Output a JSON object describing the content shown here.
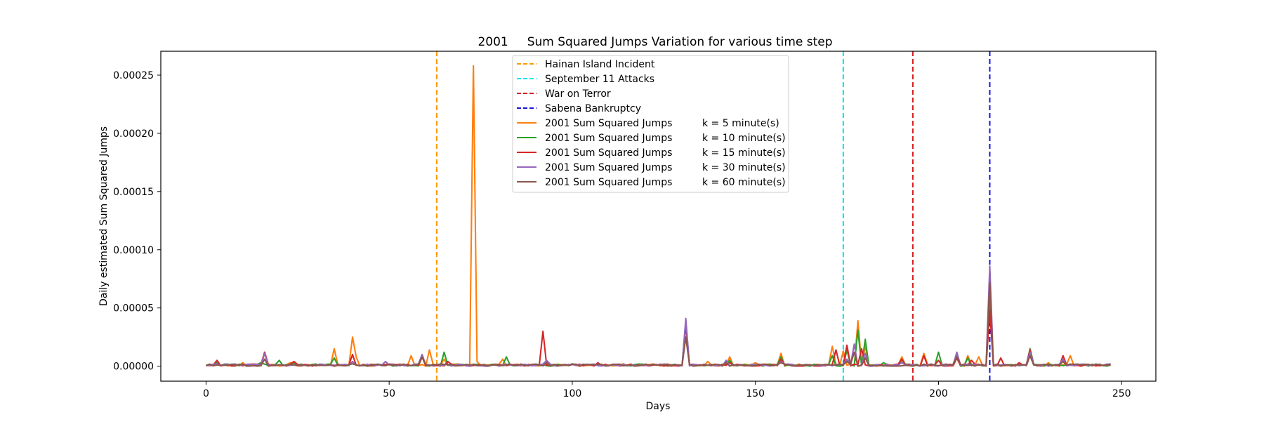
{
  "chart_data": {
    "type": "line",
    "title": "2001     Sum Squared Jumps Variation for various time step",
    "xlabel": "Days",
    "ylabel": "Daily estimated Sum Squared Jumps",
    "xlim": [
      -12.35,
      259.35
    ],
    "ylim": [
      -1.29e-05,
      0.0002705
    ],
    "xticks": [
      0,
      50,
      100,
      150,
      200,
      250
    ],
    "xtick_labels": [
      "0",
      "50",
      "100",
      "150",
      "200",
      "250"
    ],
    "yticks": [
      0,
      5e-05,
      0.0001,
      0.00015,
      0.0002,
      0.00025
    ],
    "ytick_labels": [
      "0.00000",
      "0.00005",
      "0.00010",
      "0.00015",
      "0.00020",
      "0.00025"
    ],
    "grid": false,
    "legend_position": "top-center",
    "events": [
      {
        "name": "Hainan Island Incident",
        "x": 63,
        "color": "#ff9900"
      },
      {
        "name": "September 11 Attacks",
        "x": 174,
        "color": "#00e5ee"
      },
      {
        "name": "War on Terror",
        "x": 193,
        "color": "#d62020"
      },
      {
        "name": "Sabena Bankruptcy",
        "x": 214,
        "color": "#1414e0"
      }
    ],
    "series": [
      {
        "name": "2001 Sum Squared Jumps",
        "k_label": "k = 5 minute(s)",
        "color": "#ff7f0e",
        "peaks": [
          [
            3,
            4e-06
          ],
          [
            10,
            3e-06
          ],
          [
            16,
            1.2e-05
          ],
          [
            23,
            3e-06
          ],
          [
            35,
            1.5e-05
          ],
          [
            40,
            2.5e-05
          ],
          [
            41,
            8e-06
          ],
          [
            56,
            9e-06
          ],
          [
            61,
            1.4e-05
          ],
          [
            65,
            6e-06
          ],
          [
            72,
            1e-06
          ],
          [
            73,
            0.000258
          ],
          [
            74,
            4e-06
          ],
          [
            81,
            6e-06
          ],
          [
            93,
            4e-06
          ],
          [
            100,
            2e-06
          ],
          [
            114,
            2e-06
          ],
          [
            131,
            3.5e-05
          ],
          [
            137,
            4e-06
          ],
          [
            143,
            8e-06
          ],
          [
            150,
            3e-06
          ],
          [
            157,
            1.1e-05
          ],
          [
            171,
            1.7e-05
          ],
          [
            174,
            1.3e-05
          ],
          [
            178,
            3.9e-05
          ],
          [
            180,
            1.7e-05
          ],
          [
            190,
            8e-06
          ],
          [
            196,
            1.1e-05
          ],
          [
            205,
            1.1e-05
          ],
          [
            208,
            9e-06
          ],
          [
            211,
            8e-06
          ],
          [
            214,
            6.8e-05
          ],
          [
            225,
            1.3e-05
          ],
          [
            230,
            3e-06
          ],
          [
            236,
            9e-06
          ],
          [
            247,
            1e-06
          ]
        ]
      },
      {
        "name": "2001 Sum Squared Jumps",
        "k_label": "k = 10 minute(s)",
        "color": "#2ca02c",
        "peaks": [
          [
            3,
            3e-06
          ],
          [
            15,
            3e-06
          ],
          [
            20,
            5e-06
          ],
          [
            24,
            3e-06
          ],
          [
            35,
            7e-06
          ],
          [
            40,
            4e-06
          ],
          [
            59,
            8e-06
          ],
          [
            65,
            1.2e-05
          ],
          [
            82,
            8e-06
          ],
          [
            100,
            2e-06
          ],
          [
            131,
            3.8e-05
          ],
          [
            143,
            5e-06
          ],
          [
            157,
            8e-06
          ],
          [
            171,
            9e-06
          ],
          [
            175,
            1.4e-05
          ],
          [
            178,
            3.1e-05
          ],
          [
            180,
            2.3e-05
          ],
          [
            185,
            3e-06
          ],
          [
            190,
            5e-06
          ],
          [
            200,
            1.2e-05
          ],
          [
            205,
            9e-06
          ],
          [
            208,
            7e-06
          ],
          [
            214,
            6e-05
          ],
          [
            225,
            1.5e-05
          ],
          [
            247,
            1e-06
          ]
        ]
      },
      {
        "name": "2001 Sum Squared Jumps",
        "k_label": "k = 15 minute(s)",
        "color": "#d62728",
        "peaks": [
          [
            3,
            5e-06
          ],
          [
            16,
            1.2e-05
          ],
          [
            24,
            4e-06
          ],
          [
            40,
            1e-05
          ],
          [
            59,
            8e-06
          ],
          [
            66,
            4e-06
          ],
          [
            92,
            3e-05
          ],
          [
            107,
            3e-06
          ],
          [
            131,
            3.6e-05
          ],
          [
            143,
            3e-06
          ],
          [
            157,
            6e-06
          ],
          [
            172,
            1.4e-05
          ],
          [
            175,
            1.8e-05
          ],
          [
            179,
            1.5e-05
          ],
          [
            190,
            6e-06
          ],
          [
            196,
            9e-06
          ],
          [
            200,
            5e-06
          ],
          [
            205,
            7e-06
          ],
          [
            209,
            5e-06
          ],
          [
            214,
            4.8e-05
          ],
          [
            217,
            7e-06
          ],
          [
            222,
            3e-06
          ],
          [
            225,
            1.4e-05
          ],
          [
            234,
            9e-06
          ],
          [
            247,
            1e-06
          ]
        ]
      },
      {
        "name": "2001 Sum Squared Jumps",
        "k_label": "k = 30 minute(s)",
        "color": "#9467bd",
        "peaks": [
          [
            3,
            2e-06
          ],
          [
            16,
            1.1e-05
          ],
          [
            40,
            4e-06
          ],
          [
            49,
            4e-06
          ],
          [
            59,
            1e-05
          ],
          [
            93,
            5e-06
          ],
          [
            131,
            4.1e-05
          ],
          [
            142,
            5e-06
          ],
          [
            157,
            4e-06
          ],
          [
            175,
            6e-06
          ],
          [
            177,
            1.9e-05
          ],
          [
            180,
            1.1e-05
          ],
          [
            190,
            3e-06
          ],
          [
            205,
            1.2e-05
          ],
          [
            214,
            8.6e-05
          ],
          [
            225,
            1.2e-05
          ],
          [
            234,
            6e-06
          ],
          [
            247,
            2e-06
          ]
        ]
      },
      {
        "name": "2001 Sum Squared Jumps",
        "k_label": "k = 60 minute(s)",
        "color": "#8c564b",
        "peaks": [
          [
            3,
            1e-06
          ],
          [
            16,
            6e-06
          ],
          [
            40,
            2e-06
          ],
          [
            59,
            8e-06
          ],
          [
            93,
            3e-06
          ],
          [
            131,
            2.5e-05
          ],
          [
            142,
            3e-06
          ],
          [
            157,
            3e-06
          ],
          [
            175,
            4e-06
          ],
          [
            177,
            1.2e-05
          ],
          [
            180,
            7e-06
          ],
          [
            205,
            8e-06
          ],
          [
            214,
            7.2e-05
          ],
          [
            225,
            9e-06
          ],
          [
            234,
            4e-06
          ],
          [
            247,
            1e-06
          ]
        ]
      }
    ]
  }
}
